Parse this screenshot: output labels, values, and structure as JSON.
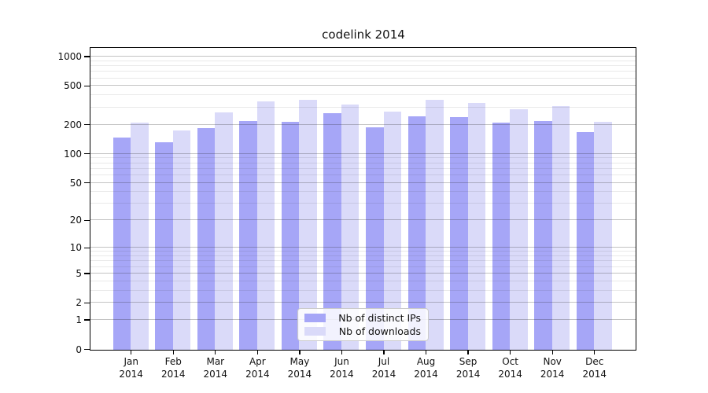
{
  "chart_data": {
    "type": "bar",
    "title": "codelink 2014",
    "categories": [
      "Jan",
      "Feb",
      "Mar",
      "Apr",
      "May",
      "Jun",
      "Jul",
      "Aug",
      "Sep",
      "Oct",
      "Nov",
      "Dec"
    ],
    "year_label": "2014",
    "series": [
      {
        "name": "Nb of distinct IPs",
        "color": "#a6a6f7",
        "values": [
          150,
          134,
          185,
          222,
          216,
          264,
          189,
          245,
          243,
          212,
          222,
          170
        ]
      },
      {
        "name": "Nb of downloads",
        "color": "#dadaf9",
        "values": [
          211,
          177,
          270,
          348,
          366,
          328,
          277,
          366,
          340,
          289,
          314,
          216
        ]
      }
    ],
    "y_axis": {
      "scale": "log1p",
      "major_ticks": [
        0,
        1,
        2,
        5,
        10,
        20,
        50,
        100,
        200,
        500,
        1000
      ],
      "minor_ticks": [
        3,
        4,
        6,
        7,
        8,
        9,
        30,
        40,
        60,
        70,
        80,
        90,
        300,
        400,
        600,
        700,
        800,
        900
      ],
      "top_value": 1270
    },
    "xlabel": "",
    "ylabel": "",
    "grid": true,
    "legend_position": "inside-bottom-center"
  }
}
